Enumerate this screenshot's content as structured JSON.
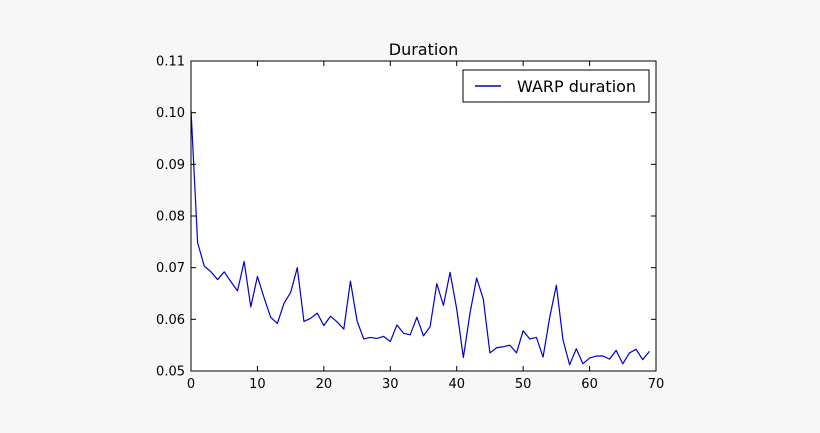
{
  "chart_data": {
    "type": "line",
    "title": "Duration",
    "xlabel": "",
    "ylabel": "",
    "xlim": [
      0,
      70
    ],
    "ylim": [
      0.05,
      0.11
    ],
    "x_ticks": [
      0,
      10,
      20,
      30,
      40,
      50,
      60,
      70
    ],
    "y_ticks": [
      0.05,
      0.06,
      0.07,
      0.08,
      0.09,
      0.1,
      0.11
    ],
    "x_tick_labels": [
      "0",
      "10",
      "20",
      "30",
      "40",
      "50",
      "60",
      "70"
    ],
    "y_tick_labels": [
      "0.05",
      "0.06",
      "0.07",
      "0.08",
      "0.09",
      "0.10",
      "0.11"
    ],
    "grid": false,
    "legend_position": "top-right",
    "series": [
      {
        "name": "WARP duration",
        "color": "#0000cc",
        "x": [
          0,
          1,
          2,
          3,
          4,
          5,
          6,
          7,
          8,
          9,
          10,
          11,
          12,
          13,
          14,
          15,
          16,
          17,
          18,
          19,
          20,
          21,
          22,
          23,
          24,
          25,
          26,
          27,
          28,
          29,
          30,
          31,
          32,
          33,
          34,
          35,
          36,
          37,
          38,
          39,
          40,
          41,
          42,
          43,
          44,
          45,
          46,
          47,
          48,
          49,
          50,
          51,
          52,
          53,
          54,
          55,
          56,
          57,
          58,
          59,
          60,
          61,
          62,
          63,
          64,
          65,
          66,
          67,
          68,
          69
        ],
        "y": [
          0.1005,
          0.0748,
          0.0703,
          0.0692,
          0.0677,
          0.0692,
          0.0673,
          0.0655,
          0.0712,
          0.0624,
          0.0683,
          0.0642,
          0.0604,
          0.0592,
          0.0631,
          0.0652,
          0.07,
          0.0596,
          0.0602,
          0.0612,
          0.0588,
          0.0606,
          0.0595,
          0.0581,
          0.0674,
          0.0597,
          0.0562,
          0.0565,
          0.0563,
          0.0567,
          0.0557,
          0.0589,
          0.0573,
          0.057,
          0.0604,
          0.0568,
          0.0586,
          0.0669,
          0.0627,
          0.0691,
          0.062,
          0.0526,
          0.0612,
          0.068,
          0.0639,
          0.0535,
          0.0545,
          0.0547,
          0.055,
          0.0535,
          0.0578,
          0.0562,
          0.0565,
          0.0527,
          0.0604,
          0.0666,
          0.056,
          0.0512,
          0.0543,
          0.0514,
          0.0525,
          0.0529,
          0.0529,
          0.0523,
          0.054,
          0.0514,
          0.0535,
          0.0542,
          0.0522,
          0.0538
        ]
      }
    ]
  }
}
